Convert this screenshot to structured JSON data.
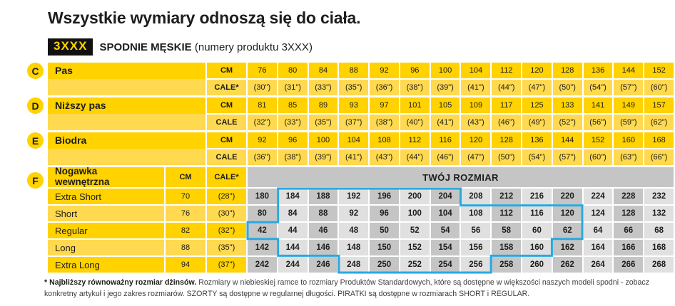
{
  "title": "Wszystkie wymiary odnoszą się do ciała.",
  "badge": "3XXX",
  "subtitle_bold": "SPODNIE MĘSKIE",
  "subtitle_rest": "(numery produktu 3XXX)",
  "colors": {
    "yellow": "#ffd200",
    "yellow_light": "#ffd94f",
    "gray_dark": "#c5c5c5",
    "gray_light": "#e0e0e0",
    "blue": "#29a9e0",
    "ink": "#1d1d1b",
    "badge_bg": "#111111"
  },
  "measure_sections": [
    {
      "letter": "C",
      "label": "Pas",
      "rows": [
        {
          "header": "CM",
          "values": [
            "76",
            "80",
            "84",
            "88",
            "92",
            "96",
            "100",
            "104",
            "112",
            "120",
            "128",
            "136",
            "144",
            "152"
          ]
        },
        {
          "header": "CALE*",
          "values": [
            "(30\")",
            "(31\")",
            "(33\")",
            "(35\")",
            "(36\")",
            "(38\")",
            "(39\")",
            "(41\")",
            "(44\")",
            "(47\")",
            "(50\")",
            "(54\")",
            "(57\")",
            "(60\")"
          ]
        }
      ]
    },
    {
      "letter": "D",
      "label": "Niższy pas",
      "rows": [
        {
          "header": "CM",
          "values": [
            "81",
            "85",
            "89",
            "93",
            "97",
            "101",
            "105",
            "109",
            "117",
            "125",
            "133",
            "141",
            "149",
            "157"
          ]
        },
        {
          "header": "CALE",
          "values": [
            "(32\")",
            "(33\")",
            "(35\")",
            "(37\")",
            "(38\")",
            "(40\")",
            "(41\")",
            "(43\")",
            "(46\")",
            "(49\")",
            "(52\")",
            "(56\")",
            "(59\")",
            "(62\")"
          ]
        }
      ]
    },
    {
      "letter": "E",
      "label": "Biodra",
      "rows": [
        {
          "header": "CM",
          "values": [
            "92",
            "96",
            "100",
            "104",
            "108",
            "112",
            "116",
            "120",
            "128",
            "136",
            "144",
            "152",
            "160",
            "168"
          ]
        },
        {
          "header": "CALE",
          "values": [
            "(36\")",
            "(38\")",
            "(39\")",
            "(41\")",
            "(43\")",
            "(44\")",
            "(46\")",
            "(47\")",
            "(50\")",
            "(54\")",
            "(57\")",
            "(60\")",
            "(63\")",
            "(66\")"
          ]
        }
      ]
    }
  ],
  "leg_section": {
    "letter": "F",
    "label": "Nogawka wewnętrzna",
    "cm_header": "CM",
    "cale_header": "CALE*",
    "grid_header": "TWÓJ ROZMIAR",
    "rows": [
      {
        "label": "Extra Short",
        "cm": "70",
        "cale": "(28\")",
        "sizes": [
          "180",
          "184",
          "188",
          "192",
          "196",
          "200",
          "204",
          "208",
          "212",
          "216",
          "220",
          "224",
          "228",
          "232"
        ],
        "standard_cols": {
          "start": 2,
          "end": 7
        }
      },
      {
        "label": "Short",
        "cm": "76",
        "cale": "(30\")",
        "sizes": [
          "80",
          "84",
          "88",
          "92",
          "96",
          "100",
          "104",
          "108",
          "112",
          "116",
          "120",
          "124",
          "128",
          "132"
        ],
        "standard_cols": {
          "start": 2,
          "end": 11
        }
      },
      {
        "label": "Regular",
        "cm": "82",
        "cale": "(32\")",
        "sizes": [
          "42",
          "44",
          "46",
          "48",
          "50",
          "52",
          "54",
          "56",
          "58",
          "60",
          "62",
          "64",
          "66",
          "68"
        ],
        "standard_cols": {
          "start": 1,
          "end": 11
        }
      },
      {
        "label": "Long",
        "cm": "88",
        "cale": "(35\")",
        "sizes": [
          "142",
          "144",
          "146",
          "148",
          "150",
          "152",
          "154",
          "156",
          "158",
          "160",
          "162",
          "164",
          "166",
          "168"
        ],
        "standard_cols": {
          "start": 2,
          "end": 10
        }
      },
      {
        "label": "Extra Long",
        "cm": "94",
        "cale": "(37\")",
        "sizes": [
          "242",
          "244",
          "246",
          "248",
          "250",
          "252",
          "254",
          "256",
          "258",
          "260",
          "262",
          "264",
          "266",
          "268"
        ],
        "standard_cols": {
          "start": 4,
          "end": 8
        }
      }
    ]
  },
  "footnote_bold": "* Najbliższy równoważny rozmiar dżinsów.",
  "footnote_rest": "Rozmiary w niebieskiej ramce to rozmiary Produktów Standardowych, które są dostępne w większości naszych modeli spodni - zobacz konkretny artykuł i jego zakres rozmiarów. SZORTY są dostępne w regularnej długości. PIRATKI są dostępne w rozmiarach SHORT i REGULAR."
}
